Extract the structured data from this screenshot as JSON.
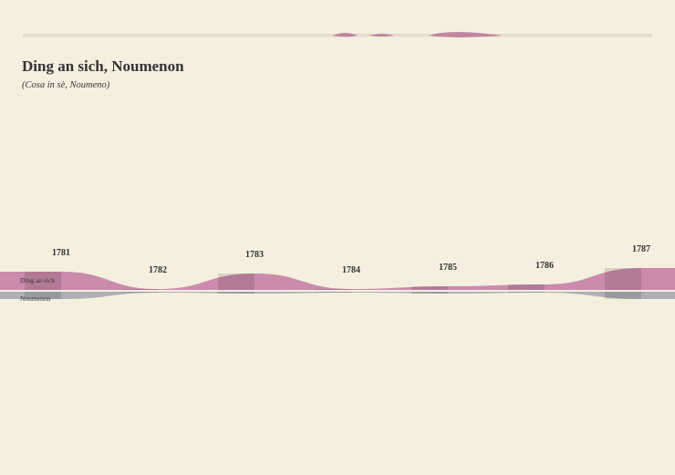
{
  "chart_data": {
    "type": "stream",
    "title": "Ding an sich, Noumenon",
    "subtitle": "(Cosa in sè, Noumeno)",
    "categories": [
      "1781",
      "1782",
      "1783",
      "1784",
      "1785",
      "1786",
      "1787"
    ],
    "series": [
      {
        "name": "Ding an sich",
        "color": "#c77fa6",
        "values": [
          20,
          1,
          18,
          1,
          4,
          6,
          24
        ]
      },
      {
        "name": "Noumenon",
        "color": "#a9a9ad",
        "values": [
          8,
          1,
          2,
          1,
          2,
          1,
          8
        ]
      }
    ]
  }
}
